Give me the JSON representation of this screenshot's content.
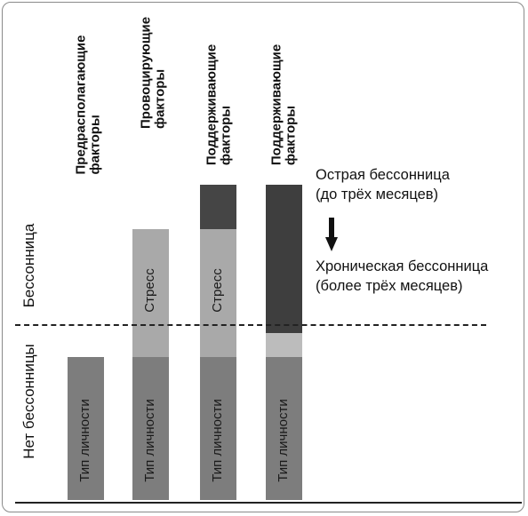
{
  "headers": {
    "col1": [
      "Предрасполагающие",
      "факторы"
    ],
    "col2": [
      "Провоцирующие",
      "факторы"
    ],
    "col3": [
      "Поддерживающие",
      "факторы"
    ],
    "col4": [
      "Поддерживающие",
      "факторы"
    ]
  },
  "side_labels": {
    "insomnia": "Бессонница",
    "no_insomnia": "Нет бессонницы"
  },
  "bar_labels": {
    "personality": "Тип личности",
    "stress": "Стресс"
  },
  "legend": {
    "acute_line1": "Острая бессонница",
    "acute_line2": "(до трёх месяцев)",
    "chronic_line1": "Хроническая бессонница",
    "chronic_line2": "(более трёх месяцев)"
  },
  "colors": {
    "personality": "#7d7d7d",
    "stress": "#a9a9a9",
    "maintaining": "#444444",
    "dashed_line": "#222222"
  },
  "icons": {
    "down_arrow": "arrow-down-icon"
  }
}
